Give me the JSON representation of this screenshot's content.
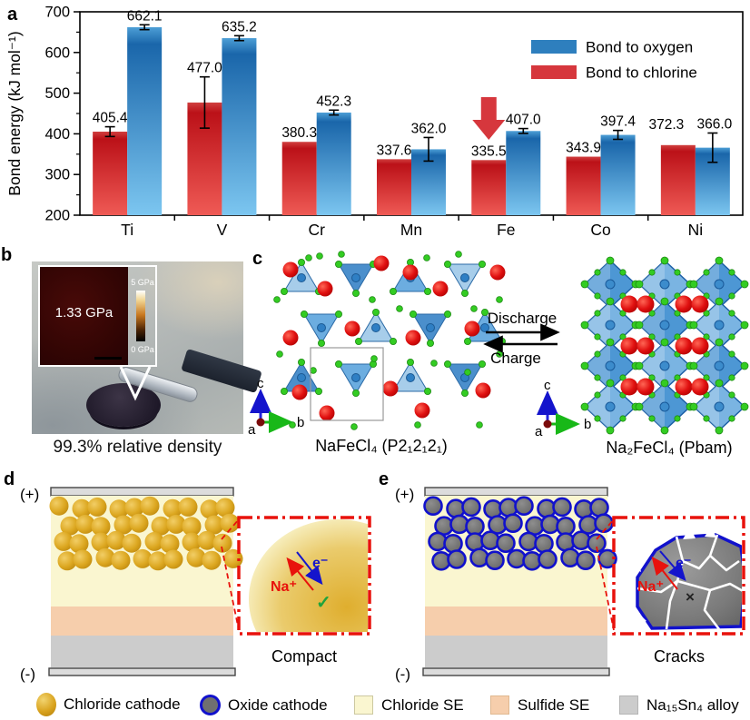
{
  "panels": {
    "a": {
      "label": "a"
    },
    "b": {
      "label": "b",
      "inset_value": "1.33 GPa",
      "scale_top": "5 GPa",
      "scale_bottom": "0 GPa",
      "caption": "99.3% relative density"
    },
    "c": {
      "label": "c",
      "discharge": "Discharge",
      "charge": "Charge",
      "left_structure_label": "NaFeCl₄ (P2₁2₁2₁)",
      "right_structure_label": "Na₂FeCl₄ (Pbam)",
      "axis_a": "a",
      "axis_b": "b",
      "axis_c": "c"
    },
    "d": {
      "label": "d",
      "plus": "(+)",
      "minus": "(-)",
      "na_ion": "Na⁺",
      "electron": "e⁻",
      "check": "✓",
      "caption": "Compact"
    },
    "e": {
      "label": "e",
      "plus": "(+)",
      "minus": "(-)",
      "na_ion": "Na⁺",
      "electron": "e⁻",
      "cross": "×",
      "caption": "Cracks"
    }
  },
  "chart_data": {
    "type": "bar",
    "title": "",
    "xlabel": "",
    "ylabel": "Bond energy (kJ mol⁻¹)",
    "ylim": [
      200,
      700
    ],
    "yticks": [
      200,
      300,
      400,
      500,
      600,
      700
    ],
    "ytick_minor_step": 50,
    "grid": false,
    "legend_position": "top-right",
    "legend_order": [
      "Bond to oxygen",
      "Bond to chlorine"
    ],
    "categories": [
      "Ti",
      "V",
      "Cr",
      "Mn",
      "Fe",
      "Co",
      "Ni"
    ],
    "series": [
      {
        "name": "Bond to chlorine",
        "color": "#D6373D",
        "values": [
          405.4,
          477.0,
          380.3,
          337.6,
          335.5,
          343.9,
          372.3
        ],
        "errors": [
          12,
          63,
          null,
          null,
          null,
          null,
          null
        ]
      },
      {
        "name": "Bond to oxygen",
        "color": "#2E7FBE",
        "values": [
          662.1,
          635.2,
          452.3,
          362.0,
          407.0,
          397.4,
          366.0
        ],
        "errors": [
          6,
          6,
          6,
          29,
          6,
          11,
          36
        ]
      }
    ],
    "annotation": {
      "type": "down-arrow",
      "target_category": "Fe",
      "target_series": "Bond to chlorine"
    }
  },
  "bottom_legend": {
    "items": [
      {
        "key": "chloride-cathode",
        "label": "Chloride cathode"
      },
      {
        "key": "oxide-cathode",
        "label": "Oxide cathode"
      },
      {
        "key": "chloride-se",
        "label": "Chloride SE"
      },
      {
        "key": "sulfide-se",
        "label": "Sulfide SE"
      },
      {
        "key": "alloy",
        "label": "Na₁₅Sn₄ alloy"
      }
    ]
  },
  "colors": {
    "oxygen_bar_top": "#1A66AA",
    "oxygen_bar_bottom": "#7CC6F0",
    "chlorine_bar_top": "#BB1118",
    "chlorine_bar_bottom": "#EF5A55",
    "oxygen_swatch": "#2E7FBE",
    "chlorine_swatch": "#D6373D",
    "annotation_arrow": "#D6373D",
    "chloride_se": "#FAF6D0",
    "sulfide_se": "#F6CEAC",
    "alloy": "#CCCCCC",
    "electrode": "#DCDCDC",
    "cathode_gold": "#D9A31E",
    "oxide_gray": "#707070",
    "oxide_ring": "#1111CC",
    "na_red": "#E8120C",
    "electron_blue": "#1414CC",
    "check_green": "#1FA33C",
    "crack_white": "#FFFFFF",
    "cl_green": "#33CC22",
    "na_sphere_red": "#E01010",
    "fe_blue": "#2F7FC4"
  }
}
